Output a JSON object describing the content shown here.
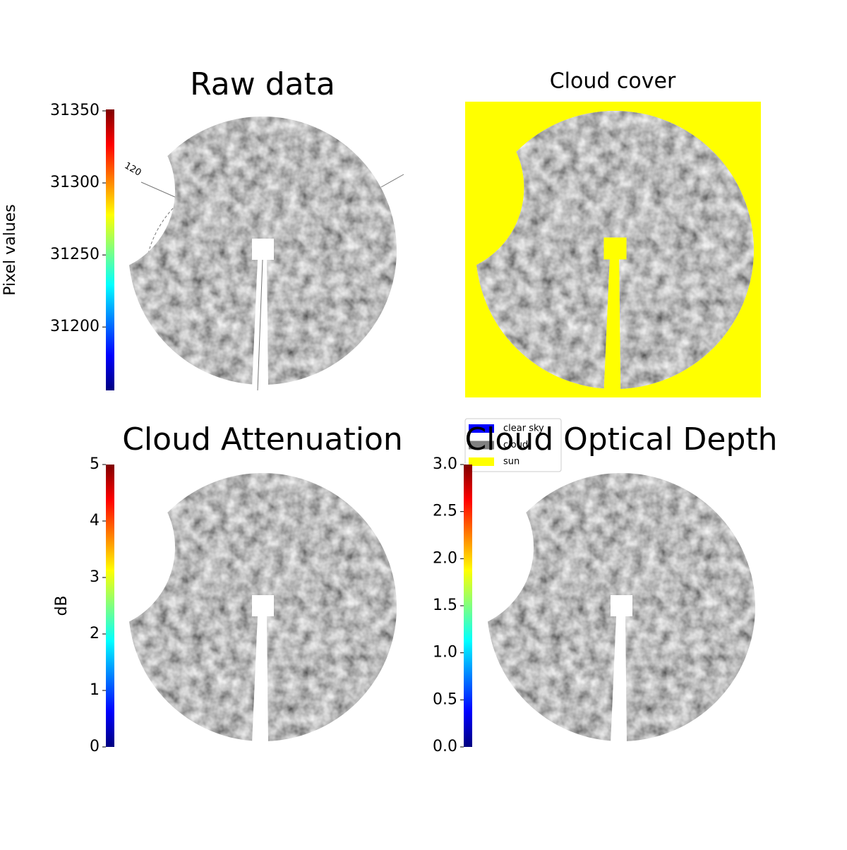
{
  "chart_data": [
    {
      "type": "image",
      "title": "Raw data",
      "annotations": [
        "120"
      ],
      "colorbar": {
        "label": "Pixel values",
        "colormap": "jet",
        "lim": [
          31156,
          31351
        ],
        "ticks": [
          31200,
          31250,
          31300,
          31350
        ]
      }
    },
    {
      "type": "image",
      "title": "Cloud cover",
      "series": [
        {
          "name": "clear sky",
          "color": "#0000ff"
        },
        {
          "name": "cloud",
          "color": "#808080"
        },
        {
          "name": "sun",
          "color": "#ffff00"
        }
      ]
    },
    {
      "type": "image",
      "title": "Cloud Attenuation",
      "colorbar": {
        "label": "dB",
        "colormap": "jet",
        "lim": [
          0,
          5
        ],
        "ticks": [
          0,
          1,
          2,
          3,
          4,
          5
        ]
      }
    },
    {
      "type": "image",
      "title": "Cloud Optical Depth",
      "colorbar": {
        "colormap": "jet",
        "lim": [
          0,
          3
        ],
        "ticks": [
          {
            "value": 0,
            "label": "0.0"
          },
          0.5,
          {
            "value": 1,
            "label": "1.0"
          },
          1.5,
          {
            "value": 2,
            "label": "2.0"
          },
          2.5,
          {
            "value": 3,
            "label": "3.0"
          }
        ]
      }
    }
  ]
}
